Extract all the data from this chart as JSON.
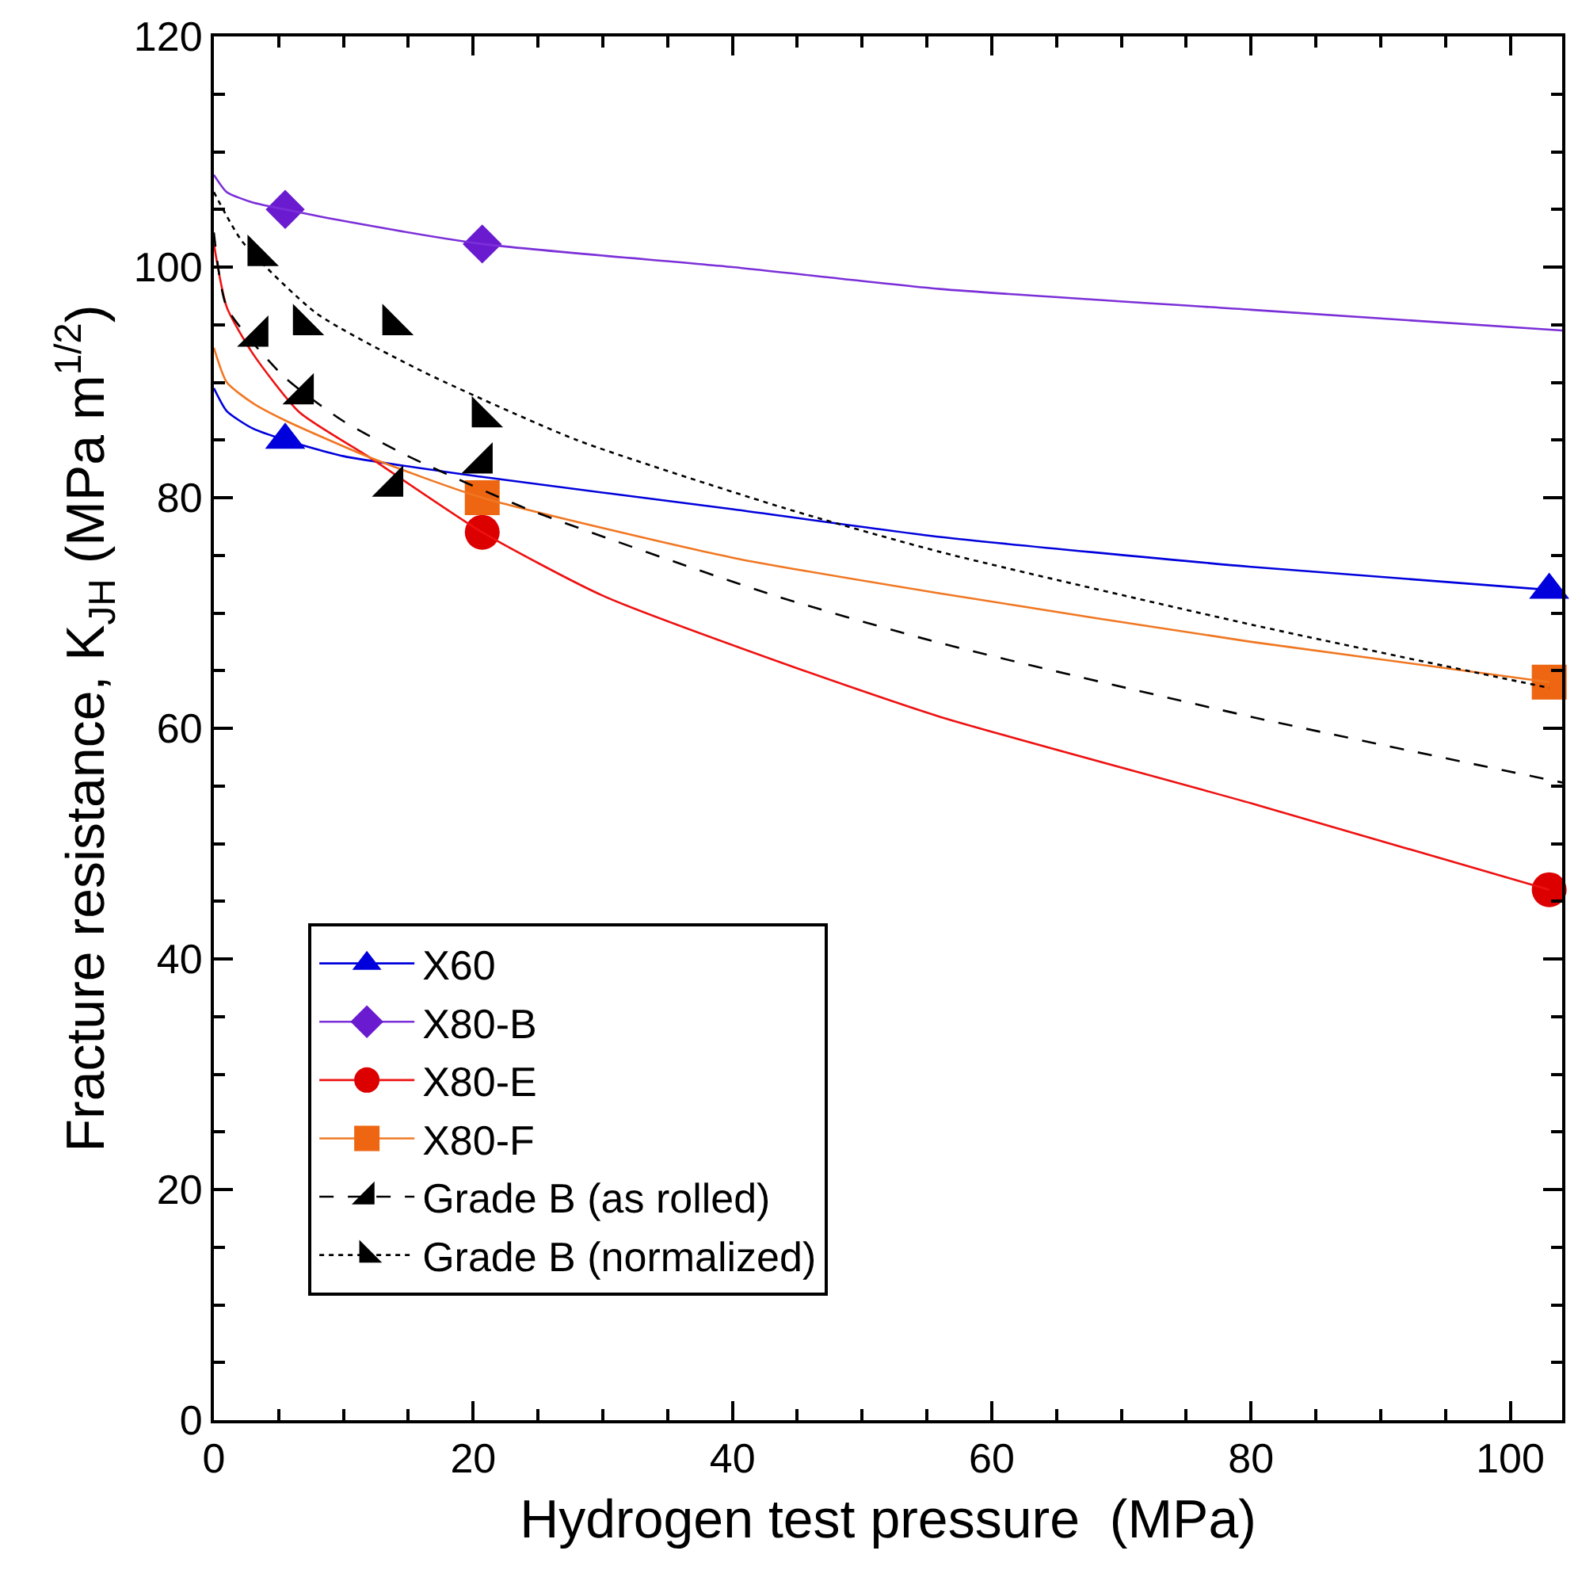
{
  "chart_data": {
    "type": "scatter",
    "xlabel": "Hydrogen test pressure  (MPa)",
    "ylabel": "Fracture resistance, K$_{JH}$ (MPa m$^{1/2}$)",
    "xlim": [
      0,
      104
    ],
    "xticks": [
      0,
      20,
      40,
      60,
      80,
      100
    ],
    "ylim": [
      0,
      120
    ],
    "yticks": [
      0,
      20,
      40,
      60,
      80,
      100,
      120
    ],
    "legend": "bottom left",
    "series": [
      {
        "name": "X60",
        "color": "#0000dd",
        "marker": "triangle",
        "x": [
          5.5,
          103
        ],
        "values": [
          85,
          72
        ]
      },
      {
        "type": "line",
        "color": "#0000dd",
        "line_style": "solid",
        "x": [
          0,
          1,
          3,
          5.5,
          10,
          20.7,
          40,
          56,
          80,
          103
        ],
        "values": [
          89.5,
          87.5,
          86,
          85,
          83.6,
          81.8,
          79,
          76.6,
          74,
          72
        ]
      },
      {
        "name": "X80-B",
        "color": "#6a1bcf",
        "marker": "diamond",
        "x": [
          5.5,
          20.7
        ],
        "values": [
          105,
          102
        ]
      },
      {
        "type": "line",
        "color": "#7b2fd8",
        "line_style": "solid",
        "x": [
          0,
          1,
          3,
          5.5,
          10,
          20.7,
          40,
          56,
          80,
          104
        ],
        "values": [
          108,
          106.5,
          105.6,
          105,
          104,
          102,
          100,
          98.1,
          96.3,
          94.5
        ]
      },
      {
        "name": "X80-E",
        "color": "#dd0000",
        "marker": "circle",
        "x": [
          20.7,
          103
        ],
        "values": [
          77,
          46
        ]
      },
      {
        "type": "line",
        "color": "#ee1111",
        "line_style": "solid",
        "x": [
          0,
          1,
          3,
          6.6,
          12,
          20.7,
          30,
          44,
          56,
          80,
          103
        ],
        "values": [
          102,
          96.5,
          92.5,
          87.4,
          83.5,
          77,
          71.5,
          65.6,
          61,
          53.5,
          46
        ]
      },
      {
        "name": "X80-F",
        "color": "#ee6611",
        "marker": "square",
        "x": [
          20.7,
          103
        ],
        "values": [
          80,
          64
        ]
      },
      {
        "type": "line",
        "color": "#f07722",
        "line_style": "solid",
        "x": [
          0,
          1,
          3,
          5.5,
          12,
          20.7,
          40,
          56,
          80,
          103
        ],
        "values": [
          93,
          90,
          88.2,
          86.7,
          83.5,
          80,
          74.8,
          71.7,
          67.5,
          64
        ]
      },
      {
        "name": "Grade B (as rolled)",
        "color": "#000000",
        "marker": "triangle",
        "x": [
          3.4,
          6.9,
          13.8,
          20.7
        ],
        "values": [
          94,
          89,
          81,
          83
        ]
      },
      {
        "type": "line",
        "color": "#000000",
        "line_style": "dashed",
        "x": [
          0,
          1,
          5.4,
          9.9,
          14.8,
          24,
          43,
          56,
          80,
          104
        ],
        "values": [
          103,
          96.5,
          90.5,
          86.7,
          83.7,
          79.1,
          71.6,
          67.4,
          61,
          55.3
        ]
      },
      {
        "name": "Grade B (normalized)",
        "color": "#000000",
        "marker": "triangle",
        "x": [
          3.4,
          6.9,
          13.8,
          20.7
        ],
        "values": [
          101,
          95,
          95,
          87
        ]
      },
      {
        "type": "line",
        "color": "#000000",
        "line_style": "dotted",
        "x": [
          0,
          2.2,
          7.9,
          16,
          28,
          44,
          56,
          80,
          103
        ],
        "values": [
          106.5,
          102.2,
          96,
          91,
          85,
          79.1,
          75.3,
          69,
          63.5
        ]
      }
    ]
  }
}
